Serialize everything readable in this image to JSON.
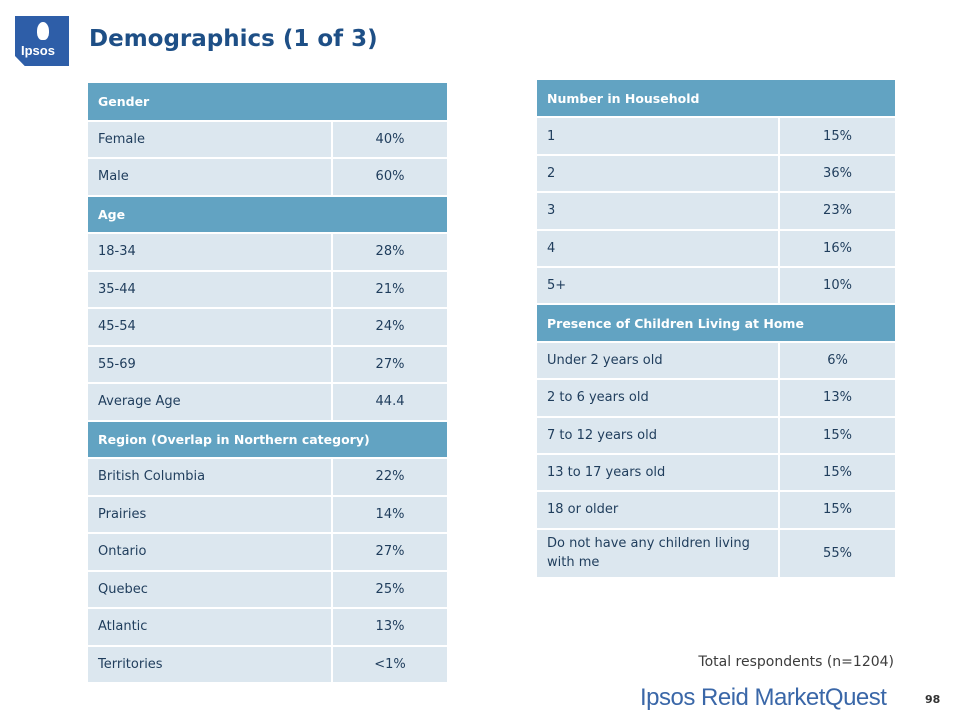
{
  "logo": {
    "text": "Ipsos"
  },
  "title": "Demographics (1 of 3)",
  "left_table": {
    "sections": [
      {
        "header": "Gender",
        "rows": [
          {
            "label": "Female",
            "value": "40%"
          },
          {
            "label": "Male",
            "value": "60%"
          }
        ]
      },
      {
        "header": "Age",
        "rows": [
          {
            "label": "18-34",
            "value": "28%"
          },
          {
            "label": "35-44",
            "value": "21%"
          },
          {
            "label": "45-54",
            "value": "24%"
          },
          {
            "label": "55-69",
            "value": "27%"
          },
          {
            "label": "Average Age",
            "value": "44.4"
          }
        ]
      },
      {
        "header": "Region (Overlap in Northern category)",
        "rows": [
          {
            "label": "British Columbia",
            "value": "22%"
          },
          {
            "label": "Prairies",
            "value": "14%"
          },
          {
            "label": "Ontario",
            "value": "27%"
          },
          {
            "label": "Quebec",
            "value": "25%"
          },
          {
            "label": "Atlantic",
            "value": "13%"
          },
          {
            "label": "Territories",
            "value": "<1%"
          }
        ]
      }
    ]
  },
  "right_table": {
    "sections": [
      {
        "header": "Number in Household",
        "rows": [
          {
            "label": "1",
            "value": "15%"
          },
          {
            "label": "2",
            "value": "36%"
          },
          {
            "label": "3",
            "value": "23%"
          },
          {
            "label": "4",
            "value": "16%"
          },
          {
            "label": "5+",
            "value": "10%"
          }
        ]
      },
      {
        "header": "Presence of Children Living at Home",
        "rows": [
          {
            "label": "Under 2 years old",
            "value": "6%"
          },
          {
            "label": "2 to 6 years old",
            "value": "13%"
          },
          {
            "label": "7 to 12 years old",
            "value": "15%"
          },
          {
            "label": "13 to 17 years old",
            "value": "15%"
          },
          {
            "label": "18 or older",
            "value": "15%"
          },
          {
            "label": "Do not have any children living with me",
            "value": "55%"
          }
        ]
      }
    ]
  },
  "footer": {
    "total": "Total respondents (n=1204)",
    "brand": "Ipsos Reid MarketQuest",
    "page_number": "98"
  },
  "colors": {
    "header_bg": "#62a3c2",
    "row_bg": "#dce7ef",
    "title": "#1e4f86",
    "brand": "#3a67a8"
  }
}
